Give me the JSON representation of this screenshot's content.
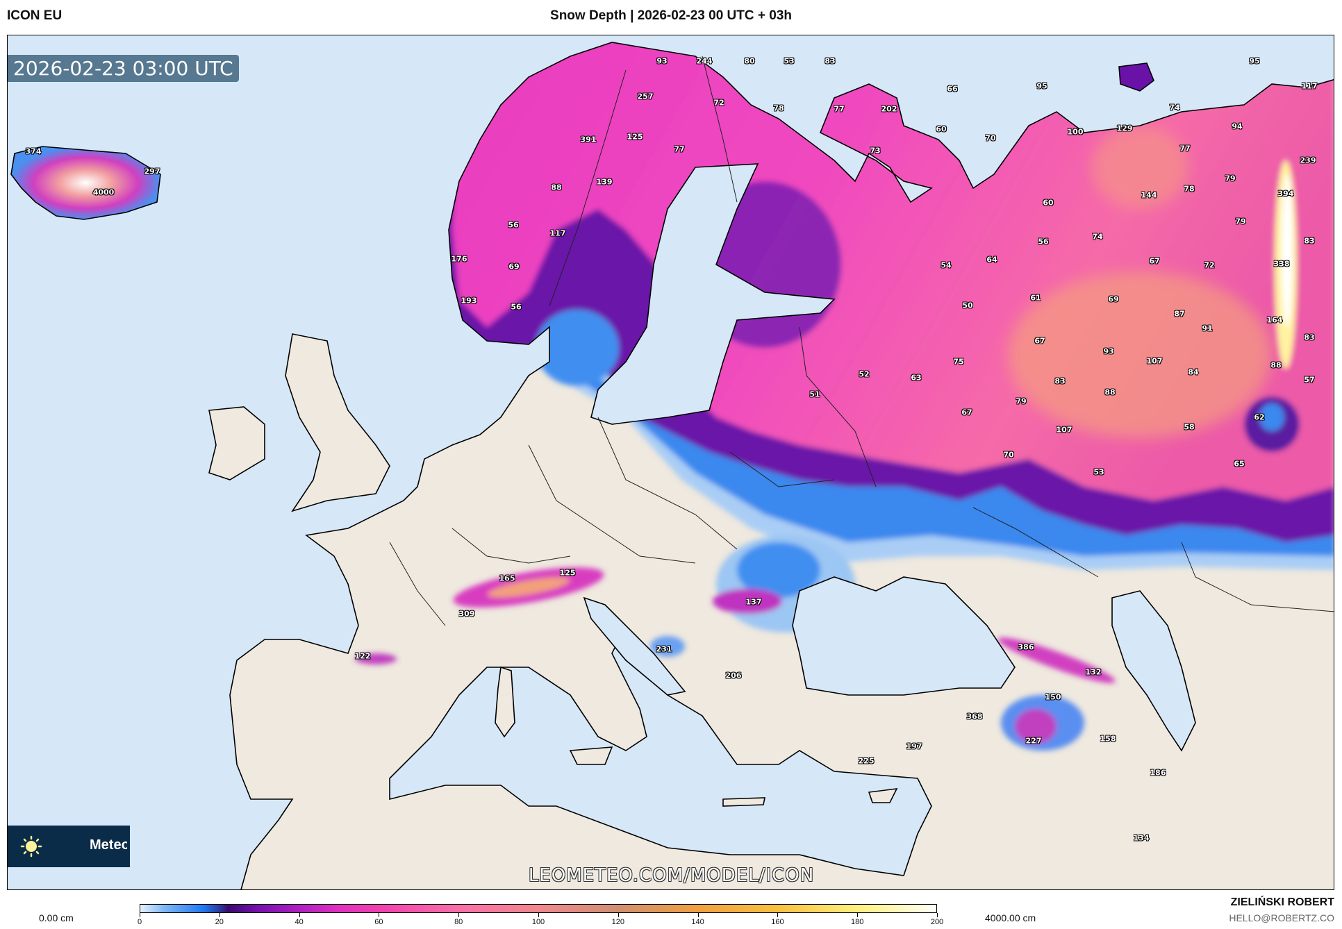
{
  "header": {
    "model": "ICON EU",
    "title": "Snow Depth | 2026-02-23 00 UTC + 03h"
  },
  "map": {
    "valid_time": "2026-02-23 03:00 UTC",
    "watermark": "LEOMETEO.COM/MODEL/ICON",
    "logo_text": "Meteo",
    "logo_icon": "sun-icon",
    "colors": {
      "sea": "#d6e7f8",
      "land": "#efe9df",
      "coast": "#000000",
      "stamp_bg": "#466982",
      "logo_bg": "#0b2c48"
    },
    "labels": [
      "374",
      "297",
      "4000",
      "93",
      "244",
      "80",
      "53",
      "83",
      "257",
      "72",
      "78",
      "77",
      "202",
      "66",
      "95",
      "95",
      "117",
      "391",
      "125",
      "77",
      "60",
      "70",
      "73",
      "100",
      "129",
      "74",
      "94",
      "77",
      "239",
      "88",
      "139",
      "144",
      "78",
      "79",
      "394",
      "60",
      "56",
      "117",
      "79",
      "74",
      "83",
      "56",
      "176",
      "69",
      "54",
      "64",
      "67",
      "72",
      "338",
      "193",
      "56",
      "50",
      "61",
      "69",
      "87",
      "91",
      "164",
      "83",
      "67",
      "93",
      "107",
      "84",
      "88",
      "57",
      "75",
      "52",
      "63",
      "83",
      "88",
      "51",
      "79",
      "67",
      "62",
      "58",
      "107",
      "70",
      "53",
      "65",
      "125",
      "165",
      "309",
      "137",
      "386",
      "132",
      "122",
      "231",
      "206",
      "150",
      "368",
      "158",
      "227",
      "197",
      "225",
      "186",
      "134"
    ]
  },
  "legend": {
    "unit_min": "0.00 cm",
    "unit_max": "4000.00 cm",
    "ticks": [
      "0",
      "20",
      "40",
      "60",
      "80",
      "100",
      "120",
      "140",
      "160",
      "180",
      "200"
    ],
    "range": [
      0,
      200
    ]
  },
  "credits": {
    "author": "ZIELIŃSKI ROBERT",
    "email": "HELLO@ROBERTZ.CO"
  }
}
